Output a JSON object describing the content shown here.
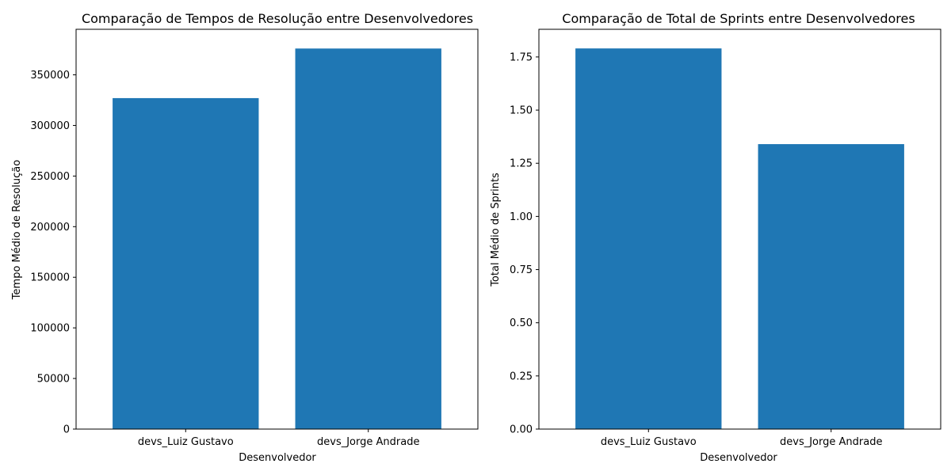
{
  "chart_data": [
    {
      "type": "bar",
      "title": "Comparação de Tempos de Resolução entre Desenvolvedores",
      "xlabel": "Desenvolvedor",
      "ylabel": "Tempo Médio de Resolução",
      "categories": [
        "devs_Luiz Gustavo",
        "devs_Jorge Andrade"
      ],
      "values": [
        327000,
        376000
      ],
      "ylim": [
        0,
        395000
      ],
      "yticks": [
        0,
        50000,
        100000,
        150000,
        200000,
        250000,
        300000,
        350000
      ],
      "ytick_labels": [
        "0",
        "50000",
        "100000",
        "150000",
        "200000",
        "250000",
        "300000",
        "350000"
      ],
      "bar_color": "#1f77b4",
      "grid": false,
      "legend": false
    },
    {
      "type": "bar",
      "title": "Comparação de Total de Sprints entre Desenvolvedores",
      "xlabel": "Desenvolvedor",
      "ylabel": "Total Médio de Sprints",
      "categories": [
        "devs_Luiz Gustavo",
        "devs_Jorge Andrade"
      ],
      "values": [
        1.79,
        1.34
      ],
      "ylim": [
        0,
        1.88
      ],
      "yticks": [
        0,
        0.25,
        0.5,
        0.75,
        1.0,
        1.25,
        1.5,
        1.75
      ],
      "ytick_labels": [
        "0.00",
        "0.25",
        "0.50",
        "0.75",
        "1.00",
        "1.25",
        "1.50",
        "1.75"
      ],
      "bar_color": "#1f77b4",
      "grid": false,
      "legend": false
    }
  ]
}
